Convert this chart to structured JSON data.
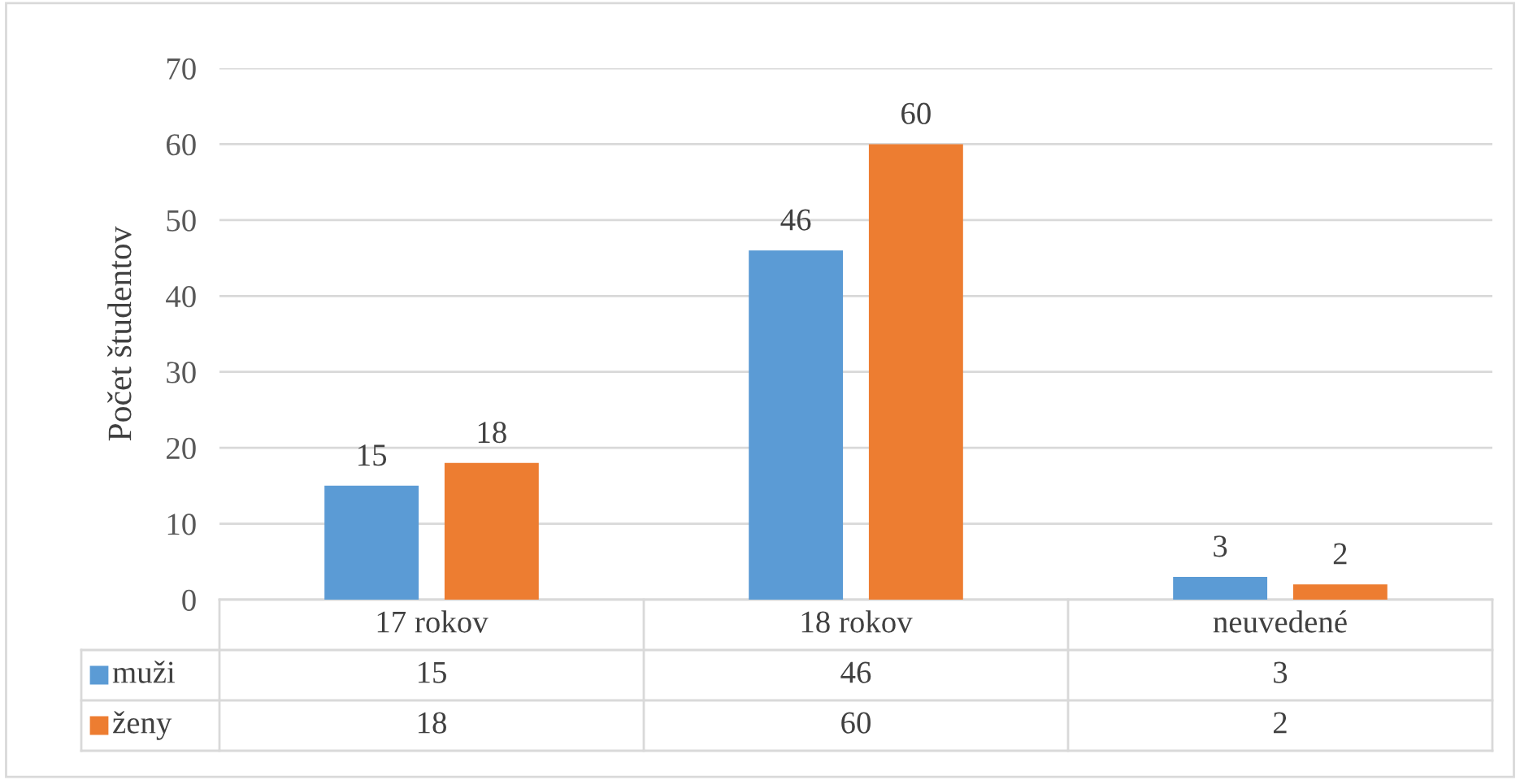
{
  "chart_data": {
    "type": "bar",
    "ylabel": "Počet študentov",
    "categories": [
      "17 rokov",
      "18 rokov",
      "neuvedené"
    ],
    "series": [
      {
        "name": "muži",
        "color": "#5b9bd5",
        "values": [
          15,
          46,
          3
        ]
      },
      {
        "name": "ženy",
        "color": "#ed7d31",
        "values": [
          18,
          60,
          2
        ]
      }
    ],
    "annotations": [
      "15",
      "46",
      "3",
      "18",
      "60",
      "2"
    ],
    "ylim": [
      0,
      70
    ],
    "yticks": [
      0,
      10,
      20,
      30,
      40,
      50,
      60,
      70
    ],
    "grid": "y",
    "data_labels": true,
    "legend": "bottom"
  }
}
